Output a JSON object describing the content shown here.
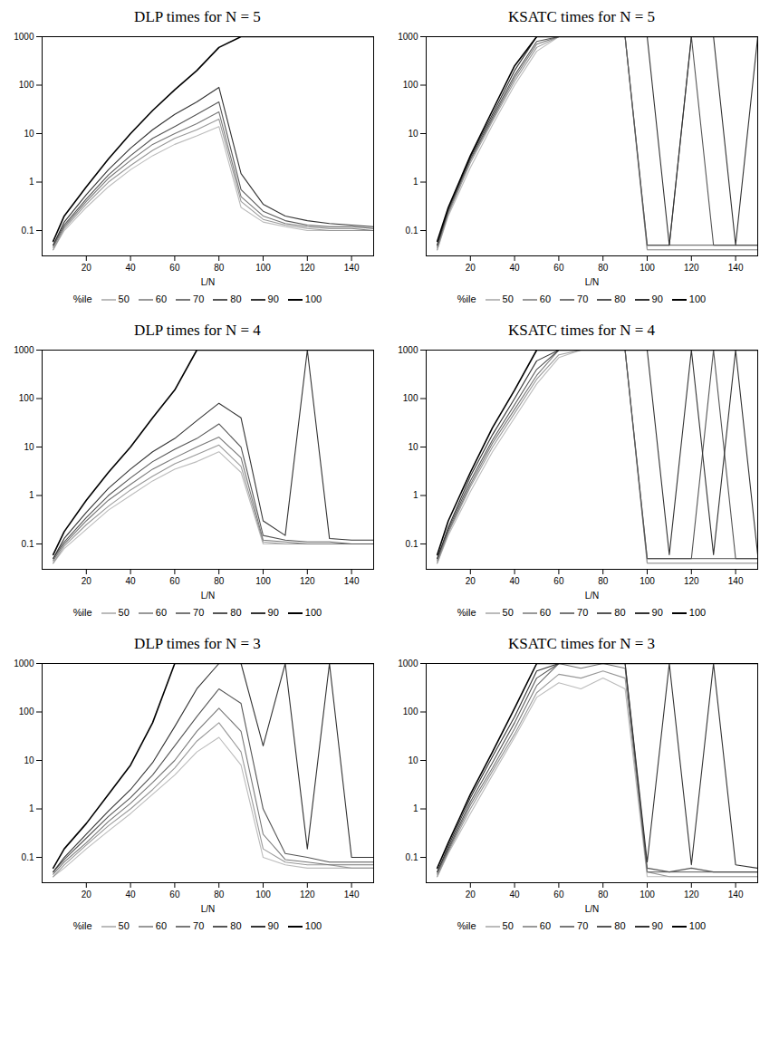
{
  "chart_data": [
    {
      "type": "line",
      "title": "DLP times for N = 5",
      "x_label": "L/N",
      "legend_title": "%ile",
      "legend": "bottom",
      "log": "y",
      "xlim": [
        0,
        150
      ],
      "xticks": [
        20,
        40,
        60,
        80,
        100,
        120,
        140
      ],
      "ylim": [
        0.03,
        1000
      ],
      "yticks": [
        0.1,
        1,
        10,
        100,
        1000
      ],
      "x": [
        5,
        10,
        20,
        30,
        40,
        50,
        60,
        70,
        80,
        90,
        100,
        110,
        120,
        130,
        140,
        150
      ],
      "series": [
        {
          "name": "50",
          "color": "#bbbbbb",
          "values": [
            0.04,
            0.1,
            0.3,
            0.8,
            1.8,
            3.5,
            6,
            9,
            14,
            0.3,
            0.15,
            0.12,
            0.1,
            0.1,
            0.1,
            0.1
          ]
        },
        {
          "name": "60",
          "color": "#999999",
          "values": [
            0.04,
            0.11,
            0.35,
            1,
            2.2,
            4.5,
            8,
            12,
            20,
            0.4,
            0.17,
            0.13,
            0.11,
            0.1,
            0.1,
            0.1
          ]
        },
        {
          "name": "70",
          "color": "#777777",
          "values": [
            0.045,
            0.12,
            0.4,
            1.2,
            2.8,
            6,
            10,
            16,
            28,
            0.5,
            0.2,
            0.14,
            0.12,
            0.11,
            0.11,
            0.1
          ]
        },
        {
          "name": "80",
          "color": "#555555",
          "values": [
            0.05,
            0.13,
            0.45,
            1.4,
            3.5,
            8,
            14,
            25,
            45,
            0.7,
            0.25,
            0.16,
            0.13,
            0.12,
            0.12,
            0.11
          ]
        },
        {
          "name": "90",
          "color": "#333333",
          "values": [
            0.05,
            0.15,
            0.55,
            1.8,
            5,
            12,
            25,
            45,
            90,
            1.5,
            0.35,
            0.2,
            0.16,
            0.14,
            0.13,
            0.12
          ]
        },
        {
          "name": "100",
          "color": "#000000",
          "values": [
            0.06,
            0.2,
            0.8,
            3,
            10,
            30,
            80,
            200,
            600,
            1000,
            1000,
            1000,
            1000,
            1000,
            1000,
            1000
          ]
        }
      ]
    },
    {
      "type": "line",
      "title": "KSATC times for N = 5",
      "x_label": "L/N",
      "legend_title": "%ile",
      "legend": "bottom",
      "log": "y",
      "xlim": [
        0,
        150
      ],
      "xticks": [
        20,
        40,
        60,
        80,
        100,
        120,
        140
      ],
      "ylim": [
        0.03,
        1000
      ],
      "yticks": [
        0.1,
        1,
        10,
        100,
        1000
      ],
      "x": [
        5,
        10,
        20,
        30,
        40,
        50,
        60,
        70,
        80,
        90,
        100,
        110,
        120,
        130,
        140,
        150
      ],
      "series": [
        {
          "name": "50",
          "color": "#bbbbbb",
          "values": [
            0.04,
            0.2,
            2,
            15,
            100,
            500,
            1000,
            1000,
            1000,
            1000,
            0.04,
            0.04,
            0.04,
            0.04,
            0.04,
            0.04
          ]
        },
        {
          "name": "60",
          "color": "#999999",
          "values": [
            0.04,
            0.22,
            2.5,
            18,
            120,
            600,
            1000,
            1000,
            1000,
            1000,
            0.04,
            0.04,
            0.04,
            0.04,
            0.04,
            0.04
          ]
        },
        {
          "name": "70",
          "color": "#777777",
          "values": [
            0.045,
            0.24,
            2.8,
            20,
            140,
            700,
            1000,
            1000,
            1000,
            1000,
            0.05,
            0.05,
            0.05,
            0.05,
            0.05,
            0.05
          ]
        },
        {
          "name": "80",
          "color": "#555555",
          "values": [
            0.05,
            0.26,
            3,
            22,
            160,
            800,
            1000,
            1000,
            1000,
            1000,
            0.05,
            0.05,
            1000,
            0.05,
            0.05,
            0.05
          ]
        },
        {
          "name": "90",
          "color": "#333333",
          "values": [
            0.05,
            0.28,
            3.3,
            25,
            200,
            1000,
            1000,
            1000,
            1000,
            1000,
            1000,
            0.05,
            1000,
            1000,
            0.05,
            1000
          ]
        },
        {
          "name": "100",
          "color": "#000000",
          "values": [
            0.06,
            0.3,
            3.5,
            30,
            250,
            1000,
            1000,
            1000,
            1000,
            1000,
            1000,
            1000,
            1000,
            1000,
            1000,
            1000
          ]
        }
      ]
    },
    {
      "type": "line",
      "title": "DLP times for N = 4",
      "x_label": "L/N",
      "legend_title": "%ile",
      "legend": "bottom",
      "log": "y",
      "xlim": [
        0,
        150
      ],
      "xticks": [
        20,
        40,
        60,
        80,
        100,
        120,
        140
      ],
      "ylim": [
        0.03,
        1000
      ],
      "yticks": [
        0.1,
        1,
        10,
        100,
        1000
      ],
      "x": [
        5,
        10,
        20,
        30,
        40,
        50,
        60,
        70,
        80,
        90,
        100,
        110,
        120,
        130,
        140,
        150
      ],
      "series": [
        {
          "name": "50",
          "color": "#bbbbbb",
          "values": [
            0.04,
            0.08,
            0.2,
            0.5,
            1,
            2,
            3.5,
            5,
            8,
            3,
            0.1,
            0.1,
            0.1,
            0.1,
            0.1,
            0.1
          ]
        },
        {
          "name": "60",
          "color": "#999999",
          "values": [
            0.04,
            0.09,
            0.25,
            0.6,
            1.3,
            2.5,
            4.5,
            7,
            11,
            4,
            0.11,
            0.1,
            0.1,
            0.1,
            0.1,
            0.1
          ]
        },
        {
          "name": "70",
          "color": "#777777",
          "values": [
            0.045,
            0.1,
            0.3,
            0.8,
            1.7,
            3.5,
            6,
            10,
            16,
            6,
            0.12,
            0.11,
            0.1,
            0.1,
            0.1,
            0.1
          ]
        },
        {
          "name": "80",
          "color": "#555555",
          "values": [
            0.05,
            0.11,
            0.35,
            1,
            2.3,
            5,
            9,
            15,
            30,
            10,
            0.15,
            0.12,
            0.11,
            0.11,
            0.1,
            0.1
          ]
        },
        {
          "name": "90",
          "color": "#333333",
          "values": [
            0.05,
            0.13,
            0.45,
            1.4,
            3.5,
            8,
            15,
            35,
            80,
            40,
            0.3,
            0.15,
            1000,
            0.13,
            0.12,
            0.12
          ]
        },
        {
          "name": "100",
          "color": "#000000",
          "values": [
            0.06,
            0.18,
            0.8,
            3,
            10,
            40,
            150,
            1000,
            1000,
            1000,
            1000,
            1000,
            1000,
            1000,
            1000,
            1000
          ]
        }
      ]
    },
    {
      "type": "line",
      "title": "KSATC times for N = 4",
      "x_label": "L/N",
      "legend_title": "%ile",
      "legend": "bottom",
      "log": "y",
      "xlim": [
        0,
        150
      ],
      "xticks": [
        20,
        40,
        60,
        80,
        100,
        120,
        140
      ],
      "ylim": [
        0.03,
        1000
      ],
      "yticks": [
        0.1,
        1,
        10,
        100,
        1000
      ],
      "x": [
        5,
        10,
        20,
        30,
        40,
        50,
        60,
        70,
        80,
        90,
        100,
        110,
        120,
        130,
        140,
        150
      ],
      "series": [
        {
          "name": "50",
          "color": "#bbbbbb",
          "values": [
            0.04,
            0.15,
            1.2,
            8,
            40,
            200,
            700,
            1000,
            1000,
            1000,
            0.04,
            0.04,
            0.04,
            0.04,
            0.04,
            0.04
          ]
        },
        {
          "name": "60",
          "color": "#999999",
          "values": [
            0.04,
            0.17,
            1.5,
            10,
            50,
            250,
            800,
            1000,
            1000,
            1000,
            0.04,
            0.04,
            0.04,
            0.04,
            0.04,
            0.04
          ]
        },
        {
          "name": "70",
          "color": "#777777",
          "values": [
            0.045,
            0.18,
            1.7,
            12,
            60,
            300,
            1000,
            1000,
            1000,
            1000,
            0.05,
            0.05,
            0.05,
            0.05,
            0.05,
            0.05
          ]
        },
        {
          "name": "80",
          "color": "#555555",
          "values": [
            0.05,
            0.2,
            2,
            14,
            75,
            400,
            1000,
            1000,
            1000,
            1000,
            0.05,
            0.05,
            0.05,
            1000,
            0.05,
            0.05
          ]
        },
        {
          "name": "90",
          "color": "#333333",
          "values": [
            0.05,
            0.22,
            2.5,
            18,
            100,
            600,
            1000,
            1000,
            1000,
            1000,
            1000,
            0.06,
            1000,
            0.06,
            1000,
            0.06
          ]
        },
        {
          "name": "100",
          "color": "#000000",
          "values": [
            0.06,
            0.3,
            3,
            25,
            150,
            1000,
            1000,
            1000,
            1000,
            1000,
            1000,
            1000,
            1000,
            1000,
            1000,
            1000
          ]
        }
      ]
    },
    {
      "type": "line",
      "title": "DLP times for N = 3",
      "x_label": "L/N",
      "legend_title": "%ile",
      "legend": "bottom",
      "log": "y",
      "xlim": [
        0,
        150
      ],
      "xticks": [
        20,
        40,
        60,
        80,
        100,
        120,
        140
      ],
      "ylim": [
        0.03,
        1000
      ],
      "yticks": [
        0.1,
        1,
        10,
        100,
        1000
      ],
      "x": [
        5,
        10,
        20,
        30,
        40,
        50,
        60,
        70,
        80,
        90,
        100,
        110,
        120,
        130,
        140,
        150
      ],
      "series": [
        {
          "name": "50",
          "color": "#bbbbbb",
          "values": [
            0.04,
            0.06,
            0.15,
            0.35,
            0.8,
            2,
            5,
            15,
            30,
            8,
            0.1,
            0.07,
            0.06,
            0.06,
            0.06,
            0.06
          ]
        },
        {
          "name": "60",
          "color": "#999999",
          "values": [
            0.04,
            0.07,
            0.18,
            0.45,
            1,
            2.5,
            7,
            25,
            60,
            15,
            0.15,
            0.08,
            0.07,
            0.07,
            0.06,
            0.06
          ]
        },
        {
          "name": "70",
          "color": "#777777",
          "values": [
            0.045,
            0.08,
            0.2,
            0.55,
            1.3,
            3.5,
            10,
            40,
            120,
            40,
            0.3,
            0.09,
            0.08,
            0.07,
            0.07,
            0.07
          ]
        },
        {
          "name": "80",
          "color": "#555555",
          "values": [
            0.05,
            0.09,
            0.25,
            0.7,
            1.7,
            5,
            20,
            80,
            300,
            150,
            1,
            0.12,
            0.1,
            0.08,
            0.08,
            0.08
          ]
        },
        {
          "name": "90",
          "color": "#333333",
          "values": [
            0.05,
            0.1,
            0.3,
            0.9,
            2.5,
            9,
            50,
            300,
            1000,
            1000,
            20,
            1000,
            0.15,
            1000,
            0.1,
            0.1
          ]
        },
        {
          "name": "100",
          "color": "#000000",
          "values": [
            0.06,
            0.15,
            0.5,
            2,
            8,
            60,
            1000,
            1000,
            1000,
            1000,
            1000,
            1000,
            1000,
            1000,
            1000,
            1000
          ]
        }
      ]
    },
    {
      "type": "line",
      "title": "KSATC times for N = 3",
      "x_label": "L/N",
      "legend_title": "%ile",
      "legend": "bottom",
      "log": "y",
      "xlim": [
        0,
        150
      ],
      "xticks": [
        20,
        40,
        60,
        80,
        100,
        120,
        140
      ],
      "ylim": [
        0.03,
        1000
      ],
      "yticks": [
        0.1,
        1,
        10,
        100,
        1000
      ],
      "x": [
        5,
        10,
        20,
        30,
        40,
        50,
        60,
        70,
        80,
        90,
        100,
        110,
        120,
        130,
        140,
        150
      ],
      "series": [
        {
          "name": "50",
          "color": "#bbbbbb",
          "values": [
            0.04,
            0.12,
            0.8,
            5,
            30,
            200,
            400,
            300,
            500,
            300,
            0.04,
            0.04,
            0.04,
            0.04,
            0.04,
            0.04
          ]
        },
        {
          "name": "60",
          "color": "#999999",
          "values": [
            0.04,
            0.13,
            1,
            6,
            35,
            250,
            600,
            500,
            700,
            500,
            0.05,
            0.04,
            0.04,
            0.04,
            0.04,
            0.04
          ]
        },
        {
          "name": "70",
          "color": "#777777",
          "values": [
            0.045,
            0.14,
            1.2,
            7,
            45,
            350,
            1000,
            800,
            1000,
            800,
            0.05,
            0.05,
            0.05,
            0.05,
            0.05,
            0.05
          ]
        },
        {
          "name": "80",
          "color": "#555555",
          "values": [
            0.05,
            0.15,
            1.4,
            9,
            60,
            500,
            1000,
            1000,
            1000,
            1000,
            0.06,
            0.05,
            0.06,
            0.05,
            0.05,
            0.05
          ]
        },
        {
          "name": "90",
          "color": "#333333",
          "values": [
            0.05,
            0.17,
            1.7,
            12,
            80,
            700,
            1000,
            1000,
            1000,
            1000,
            0.08,
            1000,
            0.07,
            1000,
            0.07,
            0.06
          ]
        },
        {
          "name": "100",
          "color": "#000000",
          "values": [
            0.06,
            0.2,
            2,
            15,
            120,
            1000,
            1000,
            1000,
            1000,
            1000,
            1000,
            1000,
            1000,
            1000,
            1000,
            1000
          ]
        }
      ]
    }
  ]
}
